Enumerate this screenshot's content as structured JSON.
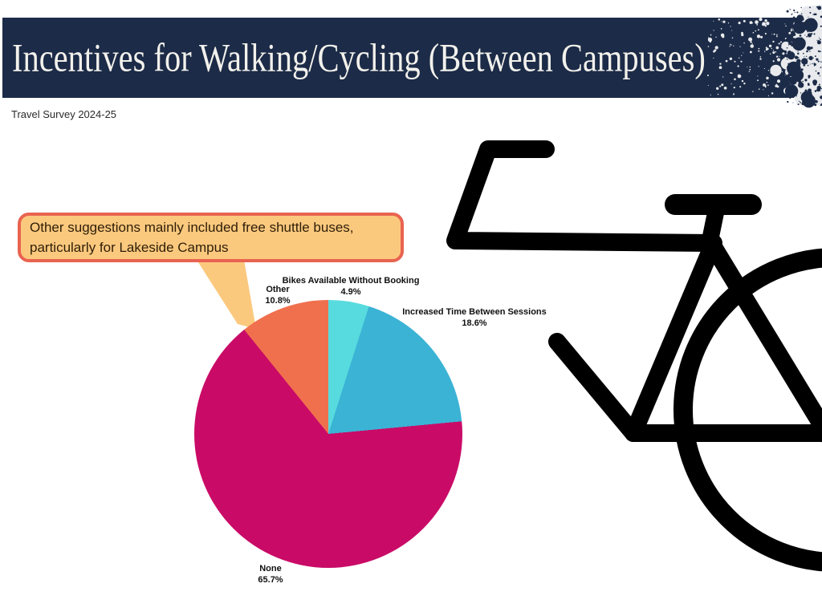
{
  "header": {
    "title": "Incentives for Walking/Cycling (Between Campuses)",
    "subtitle": "Travel Survey 2024-25",
    "bg_color": "#1C2B47",
    "text_color": "#F2F1EC",
    "splatter_gray": "#E8EAED"
  },
  "callout": {
    "text": "Other suggestions mainly included free shuttle buses, particularly for Lakeside Campus",
    "fill_color": "#FBC97E",
    "border_color": "#E96350"
  },
  "chart_data": {
    "type": "pie",
    "title": "Incentives for Walking/Cycling (Between Campuses)",
    "subtitle": "Travel Survey 2024-25",
    "labels": [
      "Bikes Available Without Booking",
      "Increased Time Between Sessions",
      "None",
      "Other"
    ],
    "values": [
      4.9,
      18.6,
      65.7,
      10.8
    ],
    "value_labels": [
      "4.9%",
      "18.6%",
      "65.7%",
      "10.8%"
    ],
    "colors": [
      "#58DBDE",
      "#3BB3D5",
      "#C90B67",
      "#F0704E"
    ],
    "start_angle_deg": 0,
    "direction": "clockwise",
    "legend": "none",
    "annotation": "Other suggestions mainly included free shuttle buses, particularly for Lakeside Campus"
  },
  "decorations": {
    "bicycle_icon": "bicycle-line-art",
    "splatter_icon": "paint-splatter"
  }
}
